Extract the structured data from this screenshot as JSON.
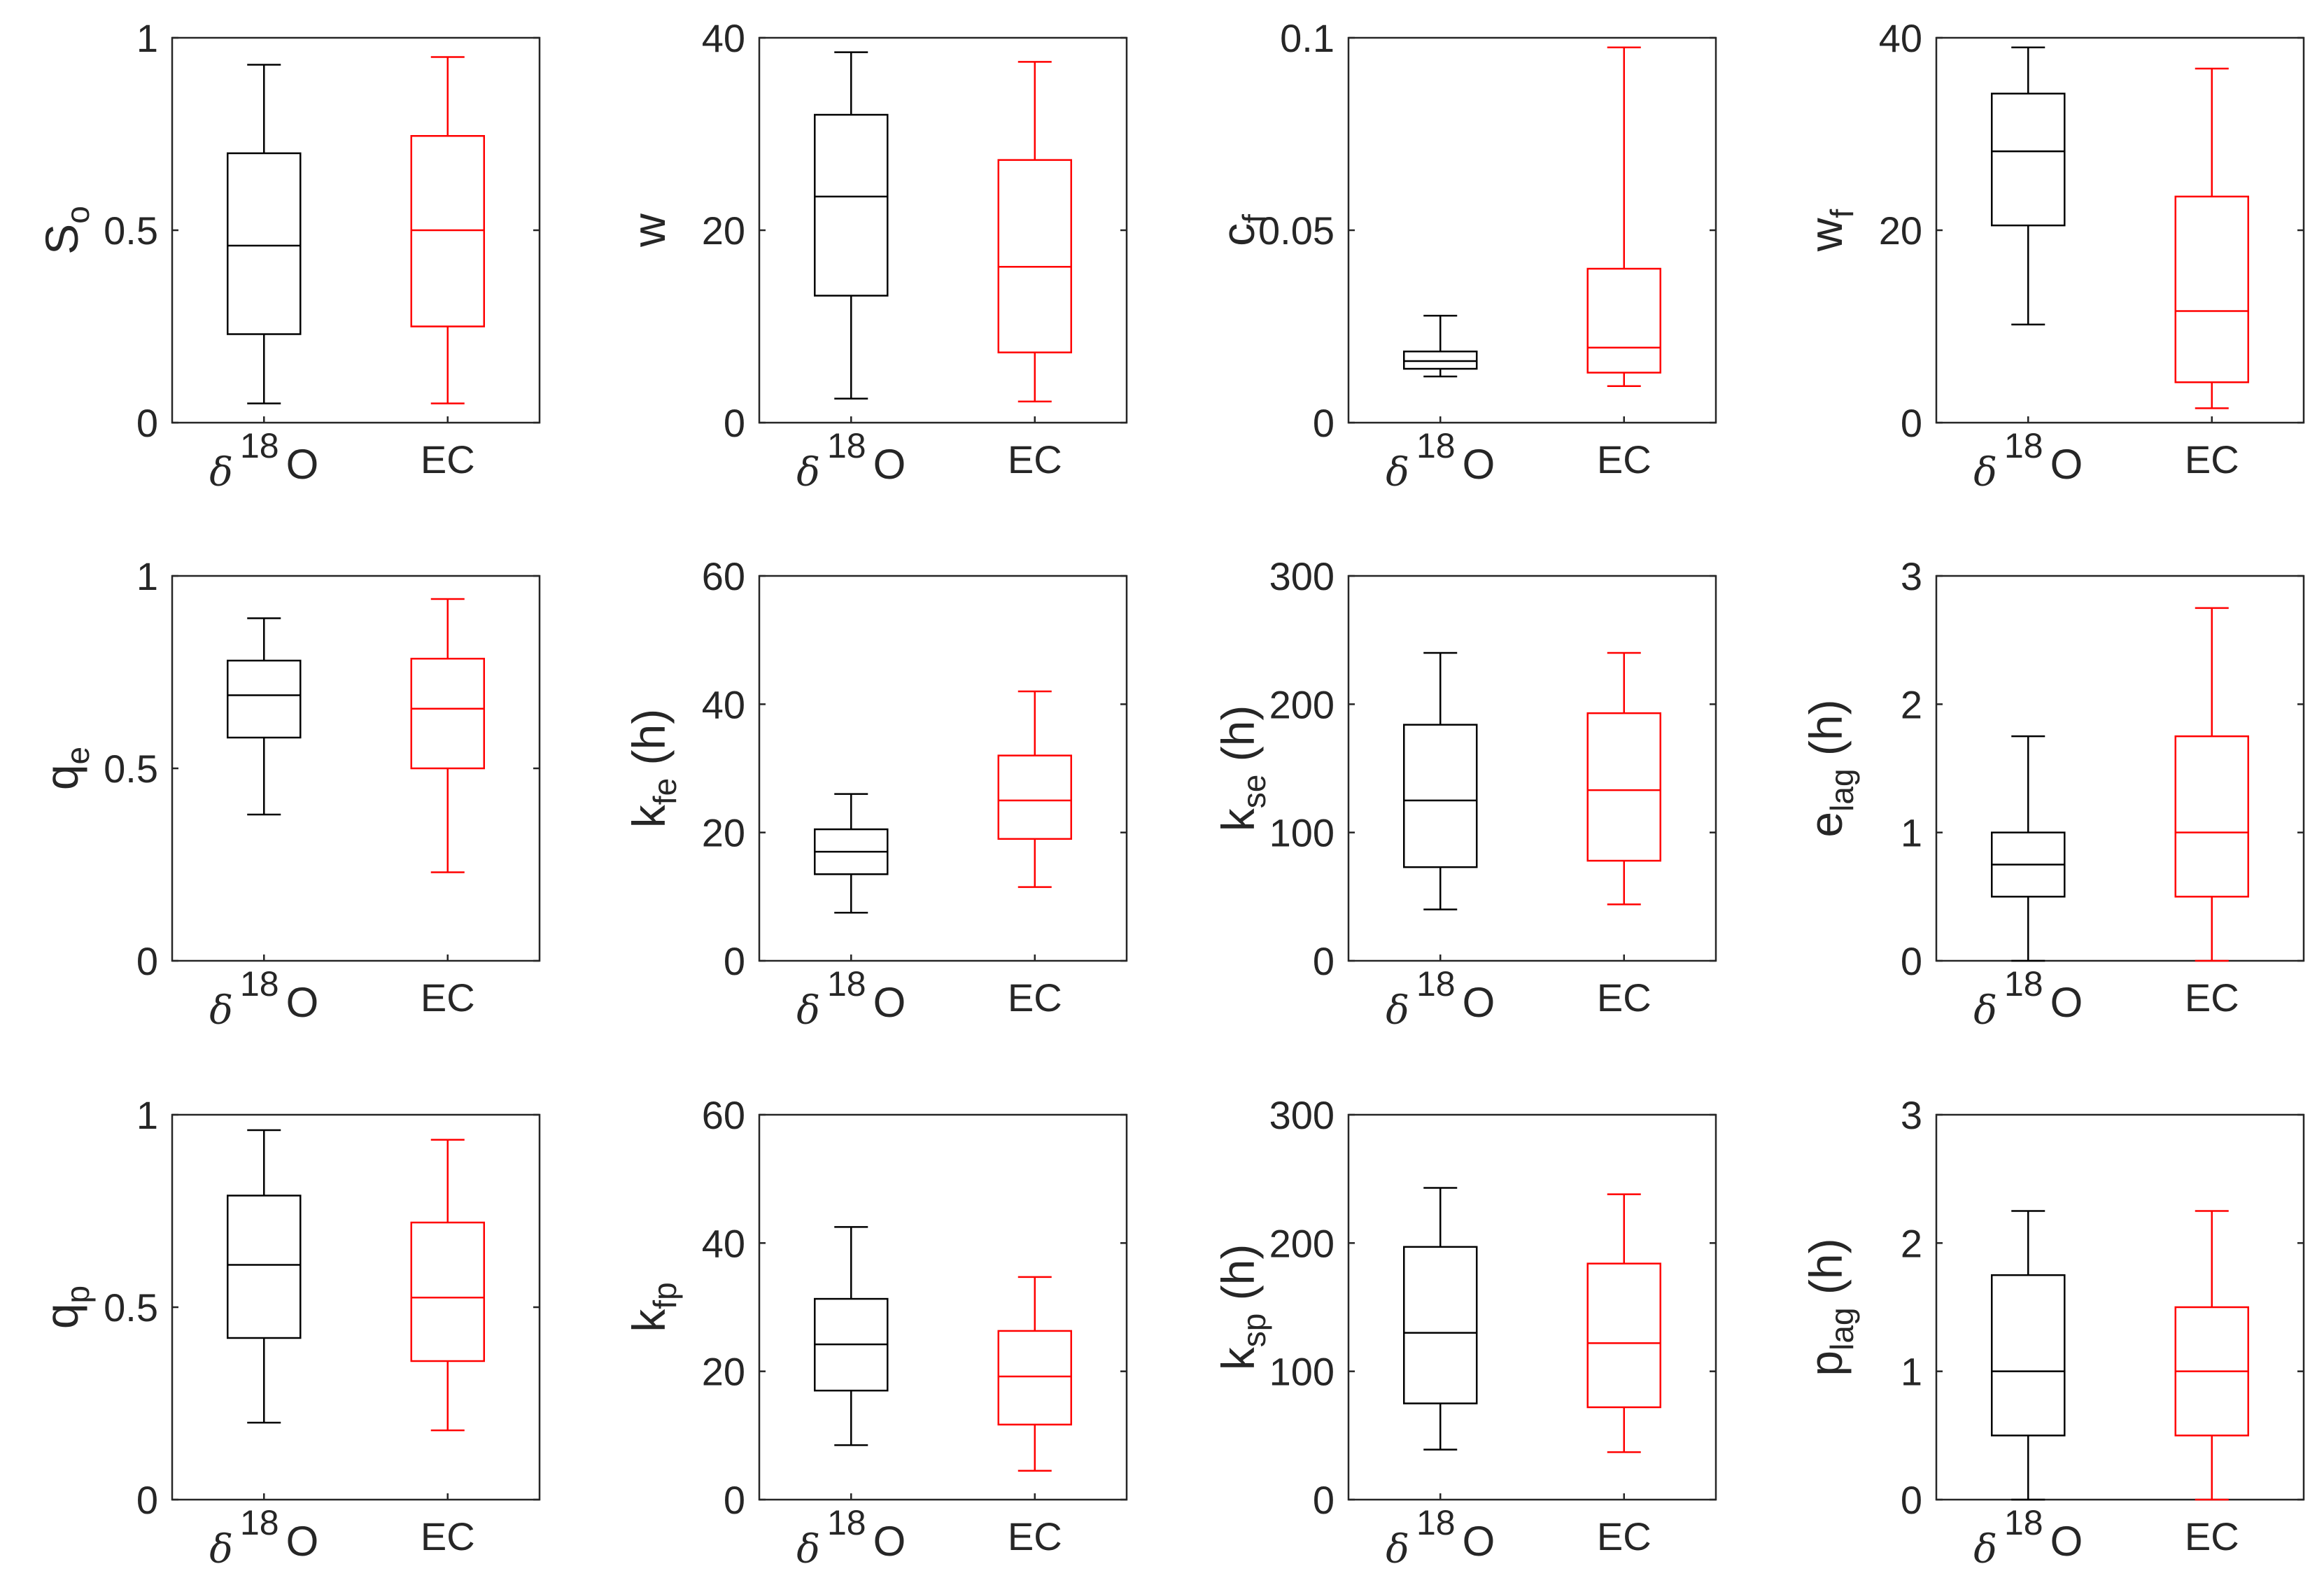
{
  "chart_data": [
    {
      "type": "box",
      "row": 0,
      "col": 0,
      "ylabel": {
        "main": "S",
        "sub": "o",
        "unit": ""
      },
      "ylim": [
        0,
        1
      ],
      "yticks": [
        "0",
        "0.5",
        "1"
      ],
      "categories": [
        {
          "pre": "δ",
          "sup": "18",
          "post": "O"
        },
        {
          "text": "EC"
        }
      ],
      "series": [
        {
          "color": "#000000",
          "min": 0.05,
          "q1": 0.23,
          "median": 0.46,
          "q3": 0.7,
          "max": 0.93
        },
        {
          "color": "#ff0000",
          "min": 0.05,
          "q1": 0.25,
          "median": 0.5,
          "q3": 0.745,
          "max": 0.95
        }
      ]
    },
    {
      "type": "box",
      "row": 0,
      "col": 1,
      "ylabel": {
        "main": "w",
        "sub": "",
        "unit": ""
      },
      "ylim": [
        0,
        40
      ],
      "yticks": [
        "0",
        "20",
        "40"
      ],
      "categories": [
        {
          "pre": "δ",
          "sup": "18",
          "post": "O"
        },
        {
          "text": "EC"
        }
      ],
      "series": [
        {
          "color": "#000000",
          "min": 2.5,
          "q1": 13.2,
          "median": 23.5,
          "q3": 32,
          "max": 38.5
        },
        {
          "color": "#ff0000",
          "min": 2.2,
          "q1": 7.3,
          "median": 16.2,
          "q3": 27.3,
          "max": 37.5
        }
      ]
    },
    {
      "type": "box",
      "row": 0,
      "col": 2,
      "ylabel": {
        "main": "c",
        "sub": "f",
        "unit": ""
      },
      "ylim": [
        0,
        0.1
      ],
      "yticks": [
        "0",
        "0.05",
        "0.1"
      ],
      "categories": [
        {
          "pre": "δ",
          "sup": "18",
          "post": "O"
        },
        {
          "text": "EC"
        }
      ],
      "series": [
        {
          "color": "#000000",
          "min": 0.012,
          "q1": 0.014,
          "median": 0.016,
          "q3": 0.0185,
          "max": 0.0278
        },
        {
          "color": "#ff0000",
          "min": 0.0095,
          "q1": 0.013,
          "median": 0.0195,
          "q3": 0.04,
          "max": 0.0975
        }
      ]
    },
    {
      "type": "box",
      "row": 0,
      "col": 3,
      "ylabel": {
        "main": "w",
        "sub": "f",
        "unit": ""
      },
      "ylim": [
        0,
        40
      ],
      "yticks": [
        "0",
        "20",
        "40"
      ],
      "categories": [
        {
          "pre": "δ",
          "sup": "18",
          "post": "O"
        },
        {
          "text": "EC"
        }
      ],
      "series": [
        {
          "color": "#000000",
          "min": 10.2,
          "q1": 20.5,
          "median": 28.2,
          "q3": 34.2,
          "max": 39
        },
        {
          "color": "#ff0000",
          "min": 1.5,
          "q1": 4.2,
          "median": 11.6,
          "q3": 23.5,
          "max": 36.8
        }
      ]
    },
    {
      "type": "box",
      "row": 1,
      "col": 0,
      "ylabel": {
        "main": "q",
        "sub": "e",
        "unit": ""
      },
      "ylim": [
        0,
        1
      ],
      "yticks": [
        "0",
        "0.5",
        "1"
      ],
      "categories": [
        {
          "pre": "δ",
          "sup": "18",
          "post": "O"
        },
        {
          "text": "EC"
        }
      ],
      "series": [
        {
          "color": "#000000",
          "min": 0.38,
          "q1": 0.58,
          "median": 0.69,
          "q3": 0.78,
          "max": 0.89
        },
        {
          "color": "#ff0000",
          "min": 0.23,
          "q1": 0.5,
          "median": 0.655,
          "q3": 0.785,
          "max": 0.94
        }
      ]
    },
    {
      "type": "box",
      "row": 1,
      "col": 1,
      "ylabel": {
        "main": "k",
        "sub": "fe",
        "unit": " (h)"
      },
      "ylim": [
        0,
        60
      ],
      "yticks": [
        "0",
        "20",
        "40",
        "60"
      ],
      "categories": [
        {
          "pre": "δ",
          "sup": "18",
          "post": "O"
        },
        {
          "text": "EC"
        }
      ],
      "series": [
        {
          "color": "#000000",
          "min": 7.5,
          "q1": 13.5,
          "median": 17,
          "q3": 20.5,
          "max": 26
        },
        {
          "color": "#ff0000",
          "min": 11.5,
          "q1": 19,
          "median": 25,
          "q3": 32,
          "max": 42
        }
      ]
    },
    {
      "type": "box",
      "row": 1,
      "col": 2,
      "ylabel": {
        "main": "k",
        "sub": "se",
        "unit": " (h)"
      },
      "ylim": [
        0,
        300
      ],
      "yticks": [
        "0",
        "100",
        "200",
        "300"
      ],
      "categories": [
        {
          "pre": "δ",
          "sup": "18",
          "post": "O"
        },
        {
          "text": "EC"
        }
      ],
      "series": [
        {
          "color": "#000000",
          "min": 40,
          "q1": 73,
          "median": 125,
          "q3": 184,
          "max": 240
        },
        {
          "color": "#ff0000",
          "min": 44,
          "q1": 78,
          "median": 133,
          "q3": 193,
          "max": 240
        }
      ]
    },
    {
      "type": "box",
      "row": 1,
      "col": 3,
      "ylabel": {
        "main": "e",
        "sub": "lag",
        "unit": " (h)"
      },
      "ylim": [
        0,
        3
      ],
      "yticks": [
        "0",
        "1",
        "2",
        "3"
      ],
      "categories": [
        {
          "pre": "δ",
          "sup": "18",
          "post": "O"
        },
        {
          "text": "EC"
        }
      ],
      "series": [
        {
          "color": "#000000",
          "min": 0,
          "q1": 0.5,
          "median": 0.75,
          "q3": 1.0,
          "max": 1.75
        },
        {
          "color": "#ff0000",
          "min": 0,
          "q1": 0.5,
          "median": 1.0,
          "q3": 1.75,
          "max": 2.75
        }
      ]
    },
    {
      "type": "box",
      "row": 2,
      "col": 0,
      "ylabel": {
        "main": "q",
        "sub": "p",
        "unit": ""
      },
      "ylim": [
        0,
        1
      ],
      "yticks": [
        "0",
        "0.5",
        "1"
      ],
      "categories": [
        {
          "pre": "δ",
          "sup": "18",
          "post": "O"
        },
        {
          "text": "EC"
        }
      ],
      "series": [
        {
          "color": "#000000",
          "min": 0.2,
          "q1": 0.42,
          "median": 0.61,
          "q3": 0.79,
          "max": 0.96
        },
        {
          "color": "#ff0000",
          "min": 0.18,
          "q1": 0.36,
          "median": 0.525,
          "q3": 0.72,
          "max": 0.935
        }
      ]
    },
    {
      "type": "box",
      "row": 2,
      "col": 1,
      "ylabel": {
        "main": "k",
        "sub": "fp",
        "unit": ""
      },
      "ylim": [
        0,
        60
      ],
      "yticks": [
        "0",
        "20",
        "40",
        "60"
      ],
      "categories": [
        {
          "pre": "δ",
          "sup": "18",
          "post": "O"
        },
        {
          "text": "EC"
        }
      ],
      "series": [
        {
          "color": "#000000",
          "min": 8.5,
          "q1": 17,
          "median": 24.2,
          "q3": 31.3,
          "max": 42.5
        },
        {
          "color": "#ff0000",
          "min": 4.5,
          "q1": 11.7,
          "median": 19.2,
          "q3": 26.3,
          "max": 34.7
        }
      ]
    },
    {
      "type": "box",
      "row": 2,
      "col": 2,
      "ylabel": {
        "main": "k",
        "sub": "sp",
        "unit": " (h)"
      },
      "ylim": [
        0,
        300
      ],
      "yticks": [
        "0",
        "100",
        "200",
        "300"
      ],
      "categories": [
        {
          "pre": "δ",
          "sup": "18",
          "post": "O"
        },
        {
          "text": "EC"
        }
      ],
      "series": [
        {
          "color": "#000000",
          "min": 39,
          "q1": 75,
          "median": 130,
          "q3": 197,
          "max": 243
        },
        {
          "color": "#ff0000",
          "min": 37,
          "q1": 72,
          "median": 122,
          "q3": 184,
          "max": 238
        }
      ]
    },
    {
      "type": "box",
      "row": 2,
      "col": 3,
      "ylabel": {
        "main": "p",
        "sub": "lag",
        "unit": " (h)"
      },
      "ylim": [
        0,
        3
      ],
      "yticks": [
        "0",
        "1",
        "2",
        "3"
      ],
      "categories": [
        {
          "pre": "δ",
          "sup": "18",
          "post": "O"
        },
        {
          "text": "EC"
        }
      ],
      "series": [
        {
          "color": "#000000",
          "min": 0,
          "q1": 0.5,
          "median": 1.0,
          "q3": 1.75,
          "max": 2.25
        },
        {
          "color": "#ff0000",
          "min": 0,
          "q1": 0.5,
          "median": 1.0,
          "q3": 1.5,
          "max": 2.25
        }
      ]
    }
  ]
}
